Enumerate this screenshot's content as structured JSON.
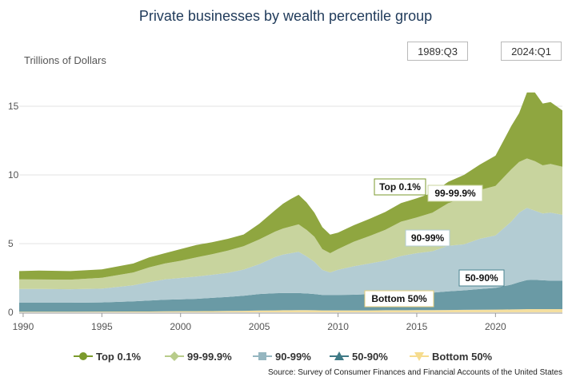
{
  "title": "Private businesses by wealth percentile group",
  "y_unit_label": "Trillions of Dollars",
  "range_start": "1989:Q3",
  "range_end": "2024:Q1",
  "source": "Source: Survey of Consumer Finances and Financial Accounts of the United States",
  "colors": {
    "top01": "#8fa640",
    "p999": "#c8d49e",
    "p9099": "#b3ccd3",
    "p5090": "#6a9aa5",
    "bottom50": "#f4dfa0"
  },
  "legend": [
    {
      "name": "Top 0.1%",
      "marker": "circle",
      "color": "#7b9a2c"
    },
    {
      "name": "99-99.9%",
      "marker": "diamond",
      "color": "#b8cc8a"
    },
    {
      "name": "90-99%",
      "marker": "square",
      "color": "#95b6c0"
    },
    {
      "name": "50-90%",
      "marker": "triangle",
      "color": "#3f7a86"
    },
    {
      "name": "Bottom 50%",
      "marker": "triangle-down",
      "color": "#f6dc8e"
    }
  ],
  "chart_data": {
    "type": "area",
    "stacked": true,
    "title": "Private businesses by wealth percentile group",
    "ylabel": "Trillions of Dollars",
    "ylim": [
      0,
      17.5
    ],
    "yticks": [
      0,
      5,
      10,
      15
    ],
    "xlim": [
      1989.75,
      2024.25
    ],
    "xticks": [
      1990,
      1995,
      2000,
      2005,
      2010,
      2015,
      2020
    ],
    "grid": true,
    "annotations": [
      "Top 0.1%",
      "99-99.9%",
      "90-99%",
      "50-90%",
      "Bottom 50%"
    ],
    "x": [
      1989.75,
      1991,
      1993,
      1995,
      1997,
      1998,
      1999,
      2000,
      2001,
      2002,
      2003,
      2004,
      2005,
      2006,
      2006.5,
      2007,
      2007.5,
      2008,
      2008.5,
      2009,
      2009.5,
      2010,
      2011,
      2012,
      2013,
      2014,
      2015,
      2016,
      2017,
      2018,
      2019,
      2020,
      2021,
      2021.5,
      2022,
      2022.5,
      2023,
      2023.5,
      2024.25
    ],
    "series": [
      {
        "name": "Bottom 50%",
        "values": [
          0.04,
          0.04,
          0.04,
          0.05,
          0.06,
          0.06,
          0.07,
          0.08,
          0.08,
          0.09,
          0.1,
          0.11,
          0.13,
          0.14,
          0.15,
          0.15,
          0.16,
          0.16,
          0.15,
          0.14,
          0.14,
          0.14,
          0.14,
          0.14,
          0.15,
          0.15,
          0.16,
          0.16,
          0.17,
          0.18,
          0.19,
          0.2,
          0.21,
          0.22,
          0.23,
          0.23,
          0.23,
          0.23,
          0.23
        ]
      },
      {
        "name": "50-90%",
        "values": [
          0.66,
          0.66,
          0.66,
          0.67,
          0.74,
          0.8,
          0.85,
          0.87,
          0.9,
          0.96,
          1.02,
          1.1,
          1.2,
          1.25,
          1.25,
          1.25,
          1.24,
          1.21,
          1.18,
          1.13,
          1.12,
          1.12,
          1.14,
          1.18,
          1.2,
          1.22,
          1.24,
          1.27,
          1.36,
          1.42,
          1.5,
          1.58,
          1.8,
          1.97,
          2.12,
          2.13,
          2.1,
          2.07,
          2.07
        ]
      },
      {
        "name": "90-99%",
        "values": [
          1.0,
          1.0,
          0.98,
          1.0,
          1.17,
          1.34,
          1.48,
          1.55,
          1.62,
          1.68,
          1.75,
          1.9,
          2.17,
          2.63,
          2.8,
          2.9,
          3.0,
          2.7,
          2.35,
          1.82,
          1.64,
          1.84,
          2.07,
          2.23,
          2.41,
          2.73,
          2.9,
          3.02,
          3.31,
          3.35,
          3.66,
          3.82,
          4.59,
          5.06,
          5.25,
          5.04,
          4.87,
          4.95,
          4.8
        ]
      },
      {
        "name": "99-99.9%",
        "values": [
          0.7,
          0.69,
          0.7,
          0.8,
          0.93,
          1.07,
          1.15,
          1.25,
          1.4,
          1.5,
          1.62,
          1.7,
          1.8,
          1.85,
          1.9,
          1.95,
          2.0,
          1.93,
          1.82,
          1.51,
          1.4,
          1.5,
          1.79,
          2.0,
          2.24,
          2.5,
          2.6,
          2.8,
          3.1,
          3.35,
          3.55,
          3.6,
          3.8,
          3.7,
          3.6,
          3.6,
          3.5,
          3.55,
          3.5
        ]
      },
      {
        "name": "Top 0.1%",
        "values": [
          0.6,
          0.65,
          0.62,
          0.6,
          0.65,
          0.73,
          0.75,
          0.85,
          0.9,
          0.87,
          0.86,
          0.85,
          1.15,
          1.56,
          1.8,
          2.0,
          2.15,
          2.0,
          1.75,
          1.6,
          1.35,
          1.2,
          1.2,
          1.25,
          1.3,
          1.35,
          1.4,
          1.45,
          1.56,
          1.7,
          1.85,
          2.2,
          3.15,
          3.55,
          4.8,
          5.0,
          4.5,
          4.5,
          4.1
        ]
      }
    ]
  }
}
